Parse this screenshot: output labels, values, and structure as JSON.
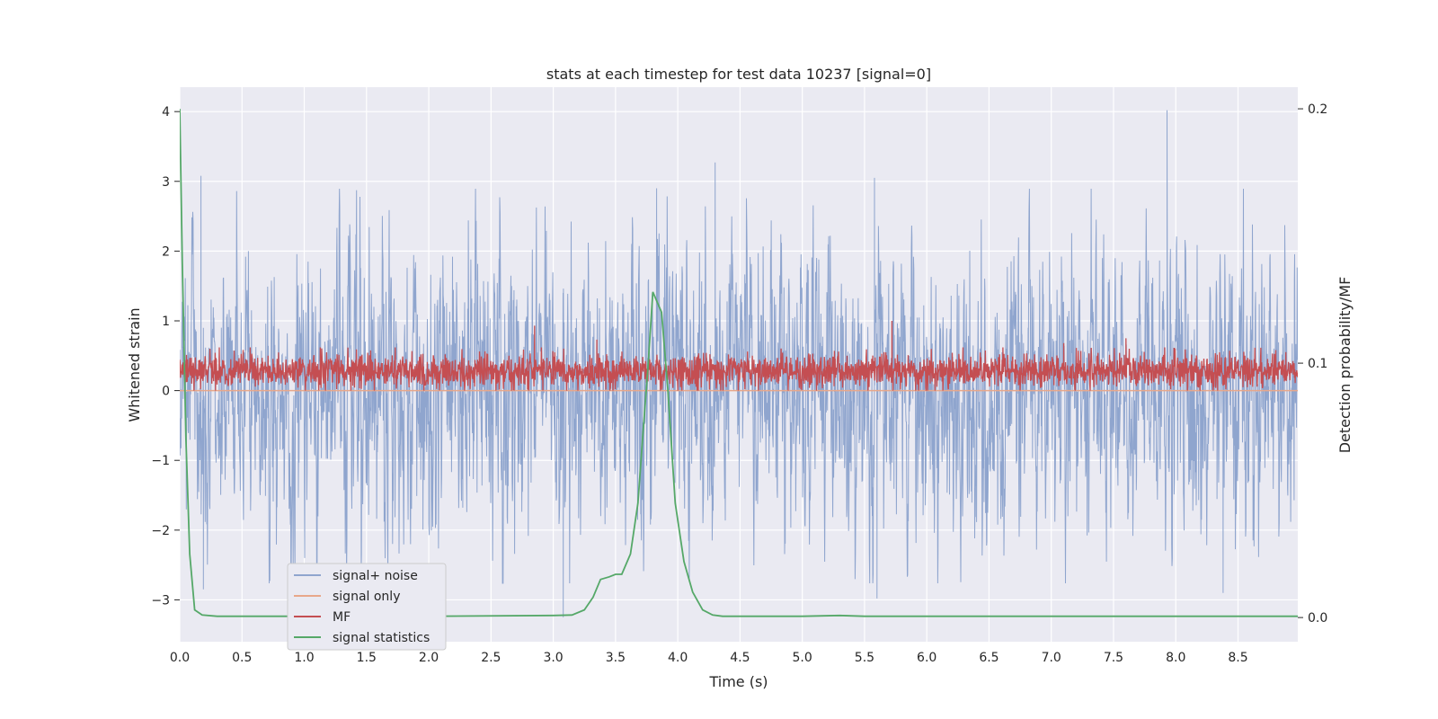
{
  "chart_data": {
    "type": "line",
    "title": "stats at each timestep for test data 10237 [signal=0]",
    "xlabel": "Time (s)",
    "ylabel": "Whitened strain",
    "y2label": "Detection probability/MF",
    "xlim": [
      0.0,
      8.98
    ],
    "ylim": [
      -3.6,
      4.35
    ],
    "y2lim": [
      -0.0095,
      0.2085
    ],
    "xticks": [
      0.0,
      0.5,
      1.0,
      1.5,
      2.0,
      2.5,
      3.0,
      3.5,
      4.0,
      4.5,
      5.0,
      5.5,
      6.0,
      6.5,
      7.0,
      7.5,
      8.0,
      8.5
    ],
    "xtick_labels": [
      "0.0",
      "0.5",
      "1.0",
      "1.5",
      "2.0",
      "2.5",
      "3.0",
      "3.5",
      "4.0",
      "4.5",
      "5.0",
      "5.5",
      "6.0",
      "6.5",
      "7.0",
      "7.5",
      "8.0",
      "8.5"
    ],
    "yticks": [
      4,
      3,
      2,
      1,
      0,
      -1,
      -2,
      -3
    ],
    "ytick_labels": [
      "4",
      "3",
      "2",
      "1",
      "0",
      "−1",
      "−2",
      "−3"
    ],
    "y2ticks": [
      0.2,
      0.1,
      0.0
    ],
    "y2tick_labels": [
      "0.2",
      "0.1",
      "0.0"
    ],
    "grid": true,
    "legend_position": "lower-left",
    "background_color": "#eaeaf2",
    "series": [
      {
        "name": "signal+ noise",
        "axis": "left",
        "color": "#8fa5ce",
        "style": "dense noise trace",
        "approx_range": [
          -3.25,
          4.02
        ],
        "peaks": [
          [
            0.17,
            3.08
          ],
          [
            3.83,
            2.9
          ],
          [
            4.3,
            3.27
          ],
          [
            5.58,
            3.05
          ],
          [
            7.93,
            4.02
          ]
        ],
        "troughs": [
          [
            0.19,
            -2.85
          ],
          [
            3.08,
            -3.25
          ],
          [
            5.6,
            -2.98
          ],
          [
            8.38,
            -2.9
          ]
        ]
      },
      {
        "name": "signal only",
        "axis": "left",
        "color": "#e8a78a",
        "x": [
          0.0,
          8.98
        ],
        "y": [
          0.0,
          0.0
        ]
      },
      {
        "name": "MF",
        "axis": "left",
        "color": "#c44e52",
        "style": "dense trace",
        "approx_range": [
          0.0,
          1.0
        ],
        "peaks": [
          [
            2.85,
            0.93
          ],
          [
            3.35,
            0.73
          ],
          [
            5.72,
            1.0
          ],
          [
            7.1,
            0.68
          ],
          [
            7.6,
            0.75
          ]
        ]
      },
      {
        "name": "signal statistics",
        "axis": "right",
        "color": "#55a868",
        "x": [
          0.0,
          0.02,
          0.05,
          0.08,
          0.12,
          0.18,
          0.3,
          0.5,
          1.0,
          2.0,
          3.0,
          3.15,
          3.25,
          3.32,
          3.38,
          3.45,
          3.5,
          3.55,
          3.62,
          3.68,
          3.72,
          3.76,
          3.8,
          3.87,
          3.92,
          3.98,
          4.05,
          4.12,
          4.2,
          4.28,
          4.36,
          4.5,
          5.0,
          5.3,
          5.5,
          6.0,
          7.0,
          8.0,
          8.98
        ],
        "y": [
          0.2,
          0.14,
          0.07,
          0.025,
          0.003,
          0.001,
          0.0005,
          0.0005,
          0.0005,
          0.0005,
          0.0008,
          0.001,
          0.003,
          0.008,
          0.015,
          0.016,
          0.017,
          0.017,
          0.025,
          0.045,
          0.072,
          0.098,
          0.128,
          0.12,
          0.09,
          0.045,
          0.022,
          0.01,
          0.003,
          0.001,
          0.0005,
          0.0005,
          0.0005,
          0.0008,
          0.0005,
          0.0005,
          0.0005,
          0.0005,
          0.0005
        ]
      }
    ]
  }
}
